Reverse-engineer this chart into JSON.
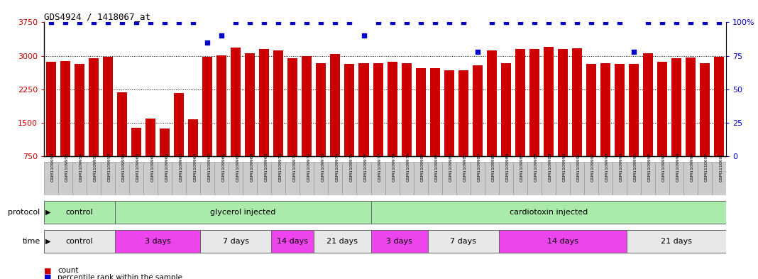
{
  "title": "GDS4924 / 1418067_at",
  "samples": [
    "GSM1109954",
    "GSM1109955",
    "GSM1109956",
    "GSM1109957",
    "GSM1109958",
    "GSM1109959",
    "GSM1109960",
    "GSM1109961",
    "GSM1109962",
    "GSM1109963",
    "GSM1109964",
    "GSM1109965",
    "GSM1109966",
    "GSM1109967",
    "GSM1109968",
    "GSM1109969",
    "GSM1109970",
    "GSM1109971",
    "GSM1109972",
    "GSM1109973",
    "GSM1109974",
    "GSM1109975",
    "GSM1109976",
    "GSM1109977",
    "GSM1109978",
    "GSM1109979",
    "GSM1109980",
    "GSM1109981",
    "GSM1109982",
    "GSM1109983",
    "GSM1109984",
    "GSM1109985",
    "GSM1109986",
    "GSM1109987",
    "GSM1109988",
    "GSM1109989",
    "GSM1109990",
    "GSM1109991",
    "GSM1109992",
    "GSM1109993",
    "GSM1109994",
    "GSM1109995",
    "GSM1109996",
    "GSM1109997",
    "GSM1109998",
    "GSM1109999",
    "GSM1110000",
    "GSM1110001"
  ],
  "bar_values": [
    2870,
    2880,
    2820,
    2940,
    2970,
    2180,
    1390,
    1590,
    1370,
    2170,
    1580,
    2970,
    3010,
    3190,
    3060,
    3160,
    3120,
    2950,
    3000,
    2830,
    3040,
    2820,
    2830,
    2840,
    2870,
    2840,
    2730,
    2720,
    2670,
    2680,
    2780,
    3120,
    2830,
    3160,
    3150,
    3200,
    3150,
    3170,
    2820,
    2830,
    2820,
    2820,
    3050,
    2870,
    2940,
    2960,
    2830,
    2970
  ],
  "percentile_values": [
    100,
    100,
    100,
    100,
    100,
    100,
    100,
    100,
    100,
    100,
    100,
    85,
    90,
    100,
    100,
    100,
    100,
    100,
    100,
    100,
    100,
    100,
    90,
    100,
    100,
    100,
    100,
    100,
    100,
    100,
    78,
    100,
    100,
    100,
    100,
    100,
    100,
    100,
    100,
    100,
    100,
    78,
    100,
    100,
    100,
    100,
    100,
    100
  ],
  "bar_color": "#cc0000",
  "dot_color": "#0000cc",
  "ylim_left": [
    750,
    3750
  ],
  "ylim_right": [
    0,
    100
  ],
  "yticks_left": [
    750,
    1500,
    2250,
    3000,
    3750
  ],
  "yticks_right": [
    0,
    25,
    50,
    75,
    100
  ],
  "protocol_groups": [
    {
      "label": "control",
      "start": 0,
      "end": 5,
      "color": "#aaeaaa"
    },
    {
      "label": "glycerol injected",
      "start": 5,
      "end": 23,
      "color": "#aaeaaa"
    },
    {
      "label": "cardiotoxin injected",
      "start": 23,
      "end": 48,
      "color": "#aaeaaa"
    }
  ],
  "time_groups": [
    {
      "label": "control",
      "start": 0,
      "end": 5,
      "color": "#e8e8e8"
    },
    {
      "label": "3 days",
      "start": 5,
      "end": 11,
      "color": "#ee44ee"
    },
    {
      "label": "7 days",
      "start": 11,
      "end": 16,
      "color": "#e8e8e8"
    },
    {
      "label": "14 days",
      "start": 16,
      "end": 19,
      "color": "#ee44ee"
    },
    {
      "label": "21 days",
      "start": 19,
      "end": 23,
      "color": "#e8e8e8"
    },
    {
      "label": "3 days",
      "start": 23,
      "end": 27,
      "color": "#ee44ee"
    },
    {
      "label": "7 days",
      "start": 27,
      "end": 32,
      "color": "#e8e8e8"
    },
    {
      "label": "14 days",
      "start": 32,
      "end": 41,
      "color": "#ee44ee"
    },
    {
      "label": "21 days",
      "start": 41,
      "end": 48,
      "color": "#e8e8e8"
    }
  ],
  "grid_lines": [
    1500,
    2250,
    3000
  ],
  "sample_box_color": "#cccccc",
  "legend_items": [
    {
      "label": "count",
      "color": "#cc0000"
    },
    {
      "label": "percentile rank within the sample",
      "color": "#0000cc"
    }
  ]
}
